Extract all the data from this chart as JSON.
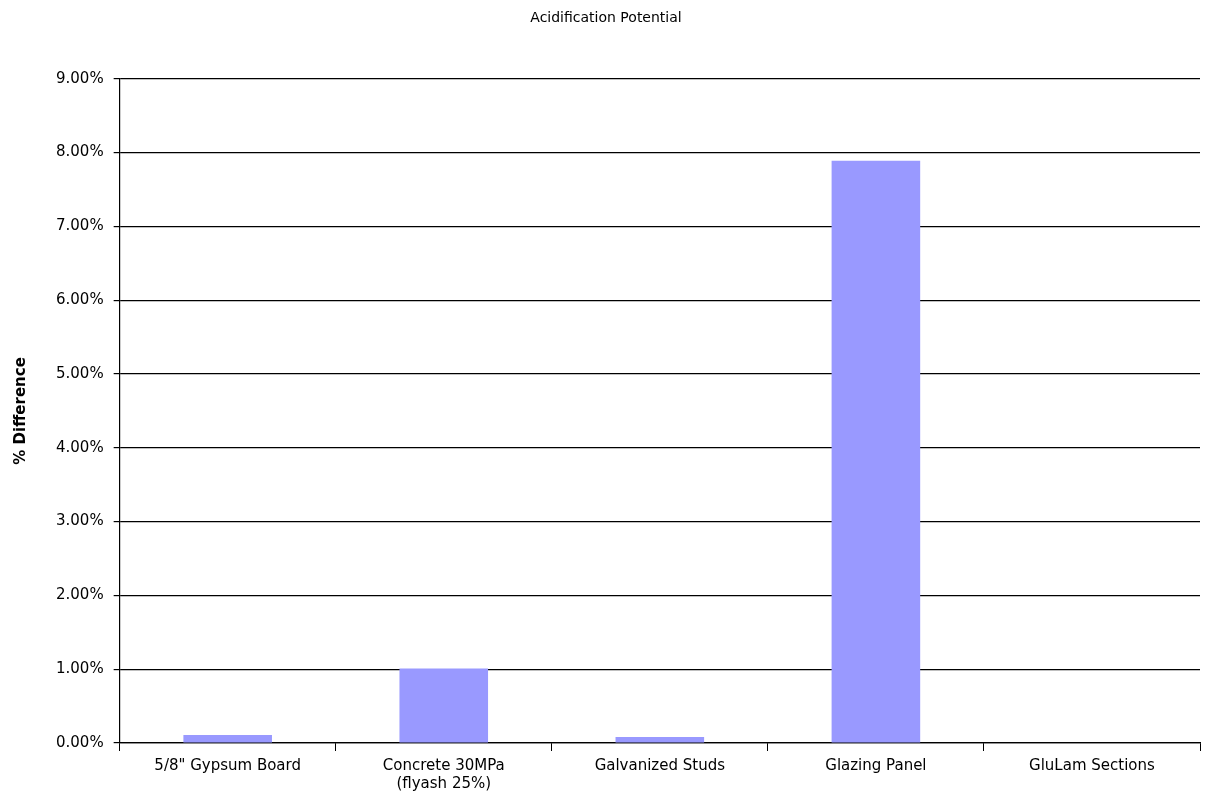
{
  "chart_data": {
    "type": "bar",
    "title": "Acidification Potential",
    "ylabel": "% Difference",
    "categories": [
      "5/8\" Gypsum Board",
      "Concrete 30MPa (flyash 25%)",
      "Galvanized Studs",
      "Glazing Panel",
      "GluLam Sections"
    ],
    "values": [
      0.11,
      1.01,
      0.08,
      7.89,
      0
    ],
    "color": "#9999ff",
    "ylim": [
      0,
      9
    ],
    "yticks": [
      {
        "value": 0,
        "label": "0.00%"
      },
      {
        "value": 1,
        "label": "1.00%"
      },
      {
        "value": 2,
        "label": "2.00%"
      },
      {
        "value": 3,
        "label": "3.00%"
      },
      {
        "value": 4,
        "label": "4.00%"
      },
      {
        "value": 5,
        "label": "5.00%"
      },
      {
        "value": 6,
        "label": "6.00%"
      },
      {
        "value": 7,
        "label": "7.00%"
      },
      {
        "value": 8,
        "label": "8.00%"
      },
      {
        "value": 9,
        "label": "9.00%"
      }
    ],
    "grid": "y"
  }
}
